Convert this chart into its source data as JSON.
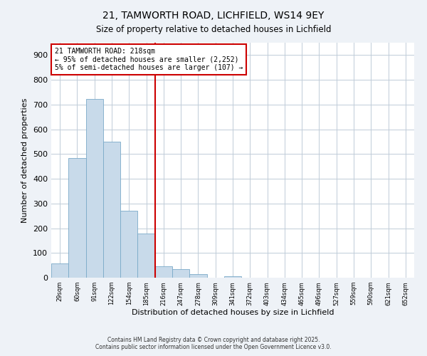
{
  "title": "21, TAMWORTH ROAD, LICHFIELD, WS14 9EY",
  "subtitle": "Size of property relative to detached houses in Lichfield",
  "xlabel": "Distribution of detached houses by size in Lichfield",
  "ylabel": "Number of detached properties",
  "bar_color": "#c8daea",
  "bar_edge_color": "#7aaac8",
  "bin_labels": [
    "29sqm",
    "60sqm",
    "91sqm",
    "122sqm",
    "154sqm",
    "185sqm",
    "216sqm",
    "247sqm",
    "278sqm",
    "309sqm",
    "341sqm",
    "372sqm",
    "403sqm",
    "434sqm",
    "465sqm",
    "496sqm",
    "527sqm",
    "559sqm",
    "590sqm",
    "621sqm",
    "652sqm"
  ],
  "bar_values": [
    57,
    483,
    724,
    549,
    270,
    178,
    46,
    34,
    14,
    0,
    5,
    0,
    0,
    0,
    0,
    0,
    0,
    0,
    0,
    0,
    0
  ],
  "vline_x": 6,
  "vline_color": "#cc0000",
  "annotation_title": "21 TAMWORTH ROAD: 218sqm",
  "annotation_line1": "← 95% of detached houses are smaller (2,252)",
  "annotation_line2": "5% of semi-detached houses are larger (107) →",
  "annotation_box_facecolor": "#ffffff",
  "annotation_box_edgecolor": "#cc0000",
  "ylim": [
    0,
    950
  ],
  "yticks": [
    0,
    100,
    200,
    300,
    400,
    500,
    600,
    700,
    800,
    900
  ],
  "footnote1": "Contains HM Land Registry data © Crown copyright and database right 2025.",
  "footnote2": "Contains public sector information licensed under the Open Government Licence v3.0.",
  "background_color": "#eef2f7",
  "plot_background_color": "#ffffff",
  "grid_color": "#c0ccd8"
}
